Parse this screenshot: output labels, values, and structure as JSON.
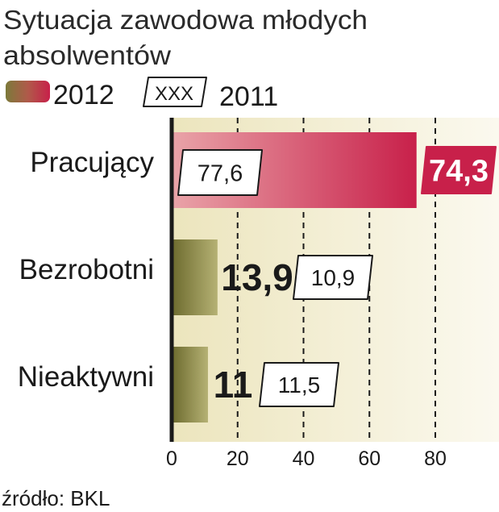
{
  "chart_data": {
    "type": "bar",
    "orientation": "horizontal",
    "title": "Sytuacja zawodowa młodych absolwentów",
    "title_lines": [
      "Sytuacja zawodowa młodych",
      "absolwentów"
    ],
    "legend": {
      "current_label": "2012",
      "previous_box_text": "XXX",
      "previous_label": "2011",
      "placement": "top-left"
    },
    "categories": [
      "Pracujący",
      "Bezrobotni",
      "Nieaktywni"
    ],
    "series": [
      {
        "name": "2012",
        "values": [
          74.3,
          13.9,
          11
        ],
        "labels": [
          "74,3",
          "13,9",
          "11"
        ]
      },
      {
        "name": "2011",
        "values": [
          77.6,
          10.9,
          11.5
        ],
        "labels": [
          "77,6",
          "10,9",
          "11,5"
        ]
      }
    ],
    "xlim": [
      0,
      80
    ],
    "xticks": [
      0,
      20,
      40,
      60,
      80
    ],
    "xtick_labels": [
      "0",
      "20",
      "40",
      "60",
      "80"
    ],
    "grid": "dashed vertical",
    "source": "źródło: BKL",
    "colors": {
      "highlight_bar": "#c8204a",
      "highlight_bar_light": "#e89aa4",
      "other_bar": "#7c7a3a",
      "other_bar_light": "#b8b476",
      "plot_background": "#f1edcf",
      "axis": "#1a1a1a",
      "label_box_border": "#1a1a1a"
    }
  }
}
